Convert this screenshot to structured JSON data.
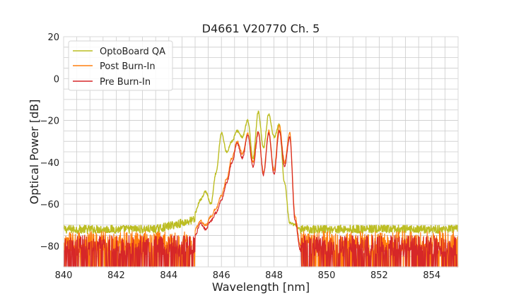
{
  "chart_data": {
    "type": "line",
    "title": "D4661 V20770 Ch. 5",
    "xlabel": "Wavelength [nm]",
    "ylabel": "Optical Power [dB]",
    "xlim": [
      840,
      855
    ],
    "ylim": [
      -90,
      20
    ],
    "xticks": [
      840,
      842,
      844,
      846,
      848,
      850,
      852,
      854
    ],
    "xtick_labels": [
      "840",
      "842",
      "844",
      "846",
      "848",
      "850",
      "852",
      "854"
    ],
    "yticks": [
      20,
      0,
      -20,
      -40,
      -60,
      -80
    ],
    "ytick_labels": [
      "20",
      "0",
      "−20",
      "−40",
      "−60",
      "−80"
    ],
    "grid": true,
    "legend_position": "top-left",
    "series": [
      {
        "name": "OptoBoard QA",
        "color": "#bcbd22",
        "noise_floor": -72,
        "x": [
          845.0,
          845.2,
          845.4,
          845.6,
          845.8,
          846.0,
          846.2,
          846.4,
          846.6,
          846.8,
          847.0,
          847.2,
          847.4,
          847.6,
          847.8,
          848.0,
          848.2,
          848.4,
          848.6,
          848.8,
          849.0
        ],
        "y": [
          -64,
          -58,
          -54,
          -60,
          -45,
          -26,
          -35,
          -30,
          -25,
          -28,
          -20,
          -38,
          -16,
          -33,
          -17,
          -28,
          -22,
          -50,
          -69,
          -70,
          -72
        ]
      },
      {
        "name": "Post Burn-In",
        "color": "#ff7f0e",
        "noise_floor": -78,
        "x": [
          845.0,
          845.2,
          845.4,
          845.6,
          845.8,
          846.0,
          846.2,
          846.4,
          846.6,
          846.8,
          847.0,
          847.2,
          847.4,
          847.6,
          847.8,
          848.0,
          848.2,
          848.4,
          848.6,
          848.8,
          849.0
        ],
        "y": [
          -72,
          -68,
          -70,
          -66,
          -62,
          -56,
          -48,
          -38,
          -30,
          -36,
          -26,
          -40,
          -25,
          -45,
          -25,
          -44,
          -22,
          -40,
          -26,
          -66,
          -80
        ]
      },
      {
        "name": "Pre Burn-In",
        "color": "#d62728",
        "noise_floor": -80,
        "x": [
          845.0,
          845.2,
          845.4,
          845.6,
          845.8,
          846.0,
          846.2,
          846.4,
          846.6,
          846.8,
          847.0,
          847.2,
          847.4,
          847.6,
          847.8,
          848.0,
          848.2,
          848.4,
          848.6,
          848.8,
          849.0
        ],
        "y": [
          -75,
          -69,
          -72,
          -68,
          -64,
          -58,
          -50,
          -40,
          -31,
          -38,
          -27,
          -42,
          -26,
          -46,
          -26,
          -46,
          -25,
          -42,
          -28,
          -68,
          -82
        ]
      }
    ]
  }
}
